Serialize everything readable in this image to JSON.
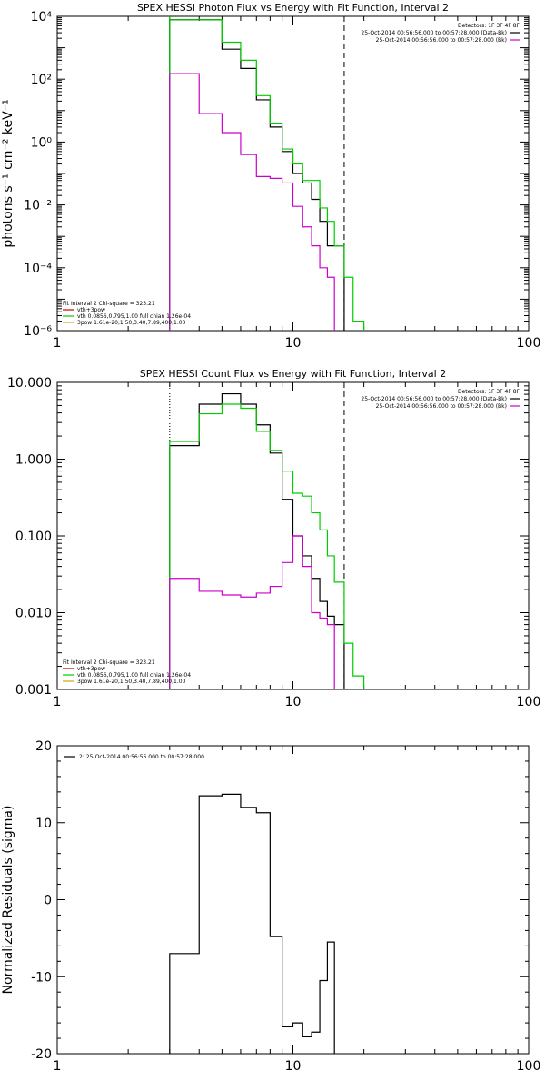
{
  "chart_data": [
    {
      "type": "line",
      "title": "SPEX HESSI Photon Flux vs Energy with Fit Function, Interval 2",
      "ylabel": "photons s⁻¹ cm⁻² keV⁻¹",
      "xscale": "log",
      "yscale": "log",
      "xlim": [
        1,
        100
      ],
      "ylim": [
        1e-06,
        10000
      ],
      "xticks": [
        1,
        10,
        100
      ],
      "xticklabels": [
        "1",
        "10",
        "100"
      ],
      "yticks": [
        1e-06,
        0.0001,
        0.01,
        1,
        100,
        10000
      ],
      "yticklabels": [
        "10⁻⁶",
        "10⁻⁴",
        "10⁻²",
        "10⁰",
        "10²",
        "10⁴"
      ],
      "vlines": [
        {
          "x": 3,
          "style": "solid",
          "color": "#00cc00"
        },
        {
          "x": 16.5,
          "style": "dashed",
          "color": "#000000"
        }
      ],
      "legend_top": {
        "placement": "top-right",
        "header": "Detectors: 1F 3F 4F 8F",
        "entries": [
          {
            "text": "25-Oct-2014 00:56:56.000 to 00:57:28.000 (Data-Bk)",
            "color": "#000000"
          },
          {
            "text": "25-Oct-2014 00:56:56.000 to 00:57:28.000 (Bk)",
            "color": "#cc00cc"
          }
        ]
      },
      "legend_bottom": {
        "placement": "bottom-left",
        "header": "Fit Interval 2   Chi-square = 323.21",
        "entries": [
          {
            "text": "vth+3pow",
            "color": "#cc0000"
          },
          {
            "text": "vth 0.0856,0.795,1.00  full chian 1.26e-04",
            "color": "#00cc00"
          },
          {
            "text": "3pow 1.61e-20,1.50,3.40,7.89,400,1.00",
            "color": "#ccaa00"
          }
        ]
      },
      "edges": [
        3,
        4,
        5,
        6,
        7,
        8,
        9,
        10,
        11,
        12,
        13,
        14,
        15,
        16.5,
        18,
        20
      ],
      "series": [
        {
          "name": "Data-Bk",
          "color": "#000000",
          "values": [
            7800,
            7800,
            900,
            220,
            22,
            3,
            0.5,
            0.1,
            0.05,
            0.015,
            0.003,
            0.0005,
            0.0005
          ]
        },
        {
          "name": "vth+3pow",
          "color": "#00cc00",
          "values": [
            7800,
            7800,
            1500,
            400,
            30,
            4,
            0.6,
            0.2,
            0.06,
            0.06,
            0.008,
            0.003,
            0.0005,
            5e-05,
            2e-06
          ]
        },
        {
          "name": "Bk",
          "color": "#cc00cc",
          "values": [
            150,
            8,
            2,
            0.4,
            0.08,
            0.07,
            0.05,
            0.009,
            0.002,
            0.0005,
            0.0001,
            5e-05
          ]
        }
      ]
    },
    {
      "type": "line",
      "title": "SPEX HESSI Count Flux vs Energy with Fit Function, Interval 2",
      "ylabel": "",
      "xscale": "log",
      "yscale": "log",
      "xlim": [
        1,
        100
      ],
      "ylim": [
        0.001,
        10
      ],
      "xticks": [
        1,
        10,
        100
      ],
      "xticklabels": [
        "1",
        "10",
        "100"
      ],
      "yticks": [
        0.001,
        0.01,
        0.1,
        1,
        10
      ],
      "yticklabels": [
        "0.001",
        "0.010",
        "0.100",
        "1.000",
        "10.000"
      ],
      "vlines": [
        {
          "x": 3,
          "style": "dotted",
          "color": "#000000"
        },
        {
          "x": 16.5,
          "style": "dashed",
          "color": "#000000"
        }
      ],
      "legend_top": {
        "placement": "top-right",
        "header": "Detectors: 1F 3F 4F 8F",
        "entries": [
          {
            "text": "25-Oct-2014 00:56:56.000 to 00:57:28.000 (Data-Bk)",
            "color": "#000000"
          },
          {
            "text": "25-Oct-2014 00:56:56.000 to 00:57:28.000 (Bk)",
            "color": "#cc00cc"
          }
        ]
      },
      "legend_bottom": {
        "placement": "bottom-left",
        "header": "Fit Interval 2   Chi-square = 323.21",
        "entries": [
          {
            "text": "vth+3pow",
            "color": "#cc0000"
          },
          {
            "text": "vth 0.0856,0.795,1.00  full chian 1.26e-04",
            "color": "#00cc00"
          },
          {
            "text": "3pow 1.61e-20,1.50,3.40,7.89,400,1.00",
            "color": "#ccaa00"
          }
        ]
      },
      "edges": [
        3,
        4,
        5,
        6,
        7,
        8,
        9,
        10,
        11,
        12,
        13,
        14,
        15,
        16.5,
        18,
        20
      ],
      "series": [
        {
          "name": "Data-Bk",
          "color": "#000000",
          "values": [
            1.5,
            5.2,
            7.1,
            5.2,
            2.8,
            1.2,
            0.3,
            0.1,
            0.055,
            0.028,
            0.014,
            0.009,
            0.007
          ]
        },
        {
          "name": "vth+3pow",
          "color": "#00cc00",
          "values": [
            1.7,
            3.9,
            5.2,
            4.6,
            2.3,
            1.3,
            0.7,
            0.36,
            0.33,
            0.2,
            0.12,
            0.055,
            0.025,
            0.004,
            0.0015
          ]
        },
        {
          "name": "Bk",
          "color": "#cc00cc",
          "values": [
            0.028,
            0.019,
            0.017,
            0.016,
            0.018,
            0.022,
            0.045,
            0.1,
            0.04,
            0.01,
            0.0085,
            0.007
          ]
        }
      ]
    },
    {
      "type": "line",
      "title": "",
      "ylabel": "Normalized Residuals (sigma)",
      "xscale": "log",
      "yscale": "linear",
      "xlim": [
        1,
        100
      ],
      "ylim": [
        -20,
        20
      ],
      "xticks": [
        1,
        10,
        100
      ],
      "xticklabels": [
        "1",
        "10",
        "100"
      ],
      "yticks": [
        -20,
        -10,
        0,
        10,
        20
      ],
      "yticklabels": [
        "-20",
        "-10",
        "0",
        "10",
        "20"
      ],
      "legend_top": {
        "placement": "top-left",
        "header": "",
        "entries": [
          {
            "text": "2: 25-Oct-2014 00:56:56.000 to 00:57:28.000",
            "color": "#000000"
          }
        ]
      },
      "edges": [
        3,
        4,
        5,
        6,
        7,
        8,
        9,
        10,
        11,
        12,
        13,
        14,
        15,
        16.5
      ],
      "series": [
        {
          "name": "2: 25-Oct-2014 00:56:56.000 to 00:57:28.000",
          "color": "#000000",
          "values": [
            -7,
            13.5,
            13.7,
            12,
            11.3,
            -4.8,
            -16.5,
            -16,
            -17.8,
            -17.2,
            -10.5,
            -5.5
          ]
        }
      ]
    }
  ]
}
